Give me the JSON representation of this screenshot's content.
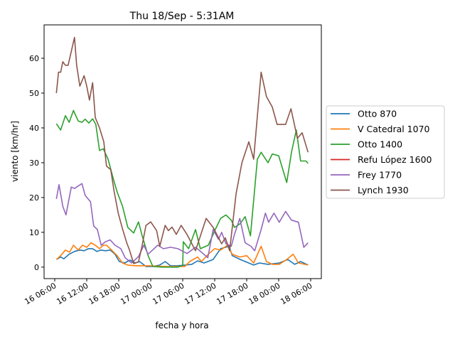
{
  "chart_data": {
    "type": "line",
    "title": "Thu 18/Sep - 5:31AM",
    "xlabel": "fecha y hora",
    "ylabel": "viento [km/hr]",
    "x_units": "hours since 16 06:00",
    "xlim": [
      -2,
      50
    ],
    "ylim": [
      -3.3,
      69.6
    ],
    "xticks": [
      {
        "value": 0,
        "label": "16 06:00"
      },
      {
        "value": 6,
        "label": "16 12:00"
      },
      {
        "value": 12,
        "label": "16 18:00"
      },
      {
        "value": 18,
        "label": "17 00:00"
      },
      {
        "value": 24,
        "label": "17 06:00"
      },
      {
        "value": 30,
        "label": "17 12:00"
      },
      {
        "value": 36,
        "label": "17 18:00"
      },
      {
        "value": 42,
        "label": "18 00:00"
      },
      {
        "value": 48,
        "label": "18 06:00"
      }
    ],
    "yticks": [
      {
        "value": 0,
        "label": "0"
      },
      {
        "value": 10,
        "label": "10"
      },
      {
        "value": 20,
        "label": "20"
      },
      {
        "value": 30,
        "label": "30"
      },
      {
        "value": 40,
        "label": "40"
      },
      {
        "value": 50,
        "label": "50"
      },
      {
        "value": 60,
        "label": "60"
      }
    ],
    "legend_position": "right-outside",
    "series": [
      {
        "name": "Otto 870",
        "color": "#1f77b4",
        "points": [
          [
            0.3,
            2.2
          ],
          [
            1.1,
            2.9
          ],
          [
            1.7,
            2.4
          ],
          [
            2.7,
            3.7
          ],
          [
            3.7,
            4.5
          ],
          [
            4.7,
            4.9
          ],
          [
            5.5,
            4.7
          ],
          [
            6.3,
            5.3
          ],
          [
            7.1,
            5.3
          ],
          [
            7.9,
            4.5
          ],
          [
            8.7,
            4.9
          ],
          [
            9.5,
            4.7
          ],
          [
            10.4,
            4.9
          ],
          [
            11.3,
            3.7
          ],
          [
            12.1,
            1.6
          ],
          [
            13.1,
            1.2
          ],
          [
            14.1,
            2
          ],
          [
            15.1,
            1.2
          ],
          [
            15.9,
            1.6
          ],
          [
            17.1,
            0.2
          ],
          [
            18.4,
            0.2
          ],
          [
            19.7,
            0.6
          ],
          [
            20.7,
            1.6
          ],
          [
            21.7,
            0.4
          ],
          [
            23.1,
            0.4
          ],
          [
            25.7,
            0.8
          ],
          [
            26.8,
            1.8
          ],
          [
            28,
            1.2
          ],
          [
            29.7,
            2.2
          ],
          [
            31.1,
            5.3
          ],
          [
            32.7,
            6
          ],
          [
            33.3,
            3.3
          ],
          [
            34.8,
            2.2
          ],
          [
            37.3,
            0.6
          ],
          [
            38.4,
            1.2
          ],
          [
            40,
            0.8
          ],
          [
            42.1,
            1.2
          ],
          [
            43.7,
            2.2
          ],
          [
            45,
            0.8
          ],
          [
            46.1,
            1.6
          ],
          [
            47.5,
            0.6
          ]
        ]
      },
      {
        "name": "V Catedral 1070",
        "color": "#ff7f0e",
        "points": [
          [
            0.3,
            2.2
          ],
          [
            1.1,
            3.3
          ],
          [
            2,
            4.9
          ],
          [
            2.8,
            4.3
          ],
          [
            3.5,
            6.3
          ],
          [
            4.4,
            4.9
          ],
          [
            5.2,
            6.3
          ],
          [
            6,
            5.7
          ],
          [
            6.8,
            7
          ],
          [
            7.6,
            6.3
          ],
          [
            8.4,
            5.3
          ],
          [
            9.1,
            6.3
          ],
          [
            9.7,
            6.3
          ],
          [
            10.8,
            4.7
          ],
          [
            11.7,
            3.3
          ],
          [
            12.7,
            1.2
          ],
          [
            13.7,
            0.6
          ],
          [
            15.1,
            0.4
          ],
          [
            17.7,
            0.4
          ],
          [
            20.4,
            0.2
          ],
          [
            24.4,
            0.2
          ],
          [
            25.3,
            1.6
          ],
          [
            26.8,
            2.9
          ],
          [
            27.5,
            1.6
          ],
          [
            28.8,
            3.7
          ],
          [
            30,
            5.3
          ],
          [
            31.1,
            4.9
          ],
          [
            32.4,
            6.3
          ],
          [
            33.3,
            3.7
          ],
          [
            34.7,
            2.9
          ],
          [
            36,
            3.3
          ],
          [
            37.3,
            1.2
          ],
          [
            38.7,
            6
          ],
          [
            39.7,
            1.6
          ],
          [
            40.8,
            0.8
          ],
          [
            42.1,
            0.8
          ],
          [
            43.5,
            2.2
          ],
          [
            44.7,
            3.7
          ],
          [
            45.7,
            1.2
          ],
          [
            47.5,
            0.6
          ]
        ]
      },
      {
        "name": "Otto 1400",
        "color": "#2ca02c",
        "points": [
          [
            0.3,
            41.2
          ],
          [
            1.1,
            39.4
          ],
          [
            2,
            43.5
          ],
          [
            2.7,
            41.6
          ],
          [
            3.5,
            45
          ],
          [
            4.4,
            42
          ],
          [
            5.1,
            41.6
          ],
          [
            5.7,
            42.5
          ],
          [
            6.4,
            41.4
          ],
          [
            7.1,
            42.6
          ],
          [
            7.7,
            41
          ],
          [
            8.4,
            33.5
          ],
          [
            9.1,
            34
          ],
          [
            10,
            31
          ],
          [
            11.1,
            24.7
          ],
          [
            11.7,
            21.6
          ],
          [
            12.7,
            17.5
          ],
          [
            13.7,
            11.4
          ],
          [
            14.8,
            9.8
          ],
          [
            15.7,
            13
          ],
          [
            16.4,
            9
          ],
          [
            17.5,
            3.3
          ],
          [
            18.4,
            0.2
          ],
          [
            20.1,
            0
          ],
          [
            23.1,
            0
          ],
          [
            24,
            0.5
          ],
          [
            24.1,
            7.3
          ],
          [
            25.1,
            5.3
          ],
          [
            26.4,
            10.8
          ],
          [
            27.3,
            5.3
          ],
          [
            28.8,
            6.3
          ],
          [
            30.1,
            10.8
          ],
          [
            31.1,
            14
          ],
          [
            32.1,
            15
          ],
          [
            33.1,
            13.5
          ],
          [
            33.7,
            11.4
          ],
          [
            34.8,
            12.5
          ],
          [
            35.7,
            14.5
          ],
          [
            36.7,
            9
          ],
          [
            38,
            31
          ],
          [
            38.7,
            33
          ],
          [
            40,
            30
          ],
          [
            40.8,
            32.5
          ],
          [
            42,
            32
          ],
          [
            43.5,
            24.3
          ],
          [
            44.4,
            33
          ],
          [
            45.3,
            39.4
          ],
          [
            46.1,
            30.5
          ],
          [
            47.1,
            30.5
          ],
          [
            47.5,
            29.8
          ]
        ]
      },
      {
        "name": "Refu López 1600",
        "color": "#d62728",
        "points": []
      },
      {
        "name": "Frey 1770",
        "color": "#9467bd",
        "points": [
          [
            0.3,
            19.6
          ],
          [
            0.8,
            23.7
          ],
          [
            1.5,
            17.5
          ],
          [
            2.1,
            15
          ],
          [
            3.1,
            23
          ],
          [
            3.7,
            22.6
          ],
          [
            4.4,
            23.3
          ],
          [
            5.1,
            24
          ],
          [
            5.7,
            20.6
          ],
          [
            6.7,
            18.8
          ],
          [
            7.3,
            11.8
          ],
          [
            8,
            10.8
          ],
          [
            8.7,
            6.3
          ],
          [
            9.5,
            7.3
          ],
          [
            10.4,
            7.8
          ],
          [
            11.3,
            6.3
          ],
          [
            12.4,
            5.3
          ],
          [
            13.2,
            2.7
          ],
          [
            14.4,
            1.2
          ],
          [
            15.7,
            3
          ],
          [
            16.7,
            6.3
          ],
          [
            17.5,
            3.7
          ],
          [
            18.4,
            5
          ],
          [
            19.3,
            6.3
          ],
          [
            20.4,
            5.3
          ],
          [
            21.7,
            5.7
          ],
          [
            23.1,
            5.3
          ],
          [
            24.8,
            3.9
          ],
          [
            26.4,
            5.7
          ],
          [
            27.5,
            4.3
          ],
          [
            28.7,
            2.7
          ],
          [
            29.7,
            10.8
          ],
          [
            30.7,
            8
          ],
          [
            31.3,
            10
          ],
          [
            32.1,
            6.7
          ],
          [
            33.1,
            6
          ],
          [
            33.7,
            9.4
          ],
          [
            34.7,
            14
          ],
          [
            35.7,
            7
          ],
          [
            36.8,
            6
          ],
          [
            37.5,
            4.7
          ],
          [
            38.7,
            10.8
          ],
          [
            39.5,
            15.5
          ],
          [
            40.1,
            12.9
          ],
          [
            41.1,
            15.5
          ],
          [
            42.1,
            12.9
          ],
          [
            43.3,
            16
          ],
          [
            44.4,
            13.5
          ],
          [
            45.7,
            12.9
          ],
          [
            46.7,
            5.7
          ],
          [
            47.5,
            7
          ]
        ]
      },
      {
        "name": "Lynch 1930",
        "color": "#8c564b",
        "points": [
          [
            0.3,
            50
          ],
          [
            0.7,
            56
          ],
          [
            1.1,
            56
          ],
          [
            1.5,
            59
          ],
          [
            2,
            58
          ],
          [
            2.5,
            58
          ],
          [
            3.1,
            62
          ],
          [
            3.7,
            66
          ],
          [
            4.1,
            58
          ],
          [
            4.7,
            52
          ],
          [
            5.5,
            55
          ],
          [
            6,
            52
          ],
          [
            6.5,
            48
          ],
          [
            7.1,
            53
          ],
          [
            7.6,
            43
          ],
          [
            8.4,
            40
          ],
          [
            9.2,
            36
          ],
          [
            9.7,
            29
          ],
          [
            10.5,
            28
          ],
          [
            11.1,
            22
          ],
          [
            11.9,
            15.5
          ],
          [
            12.7,
            11
          ],
          [
            13.5,
            7
          ],
          [
            14,
            5
          ],
          [
            14.8,
            1
          ],
          [
            15.7,
            1.5
          ],
          [
            16.4,
            6.3
          ],
          [
            17.1,
            12
          ],
          [
            18,
            13
          ],
          [
            19.1,
            10.5
          ],
          [
            19.7,
            6
          ],
          [
            20.7,
            12
          ],
          [
            21.3,
            10.5
          ],
          [
            22,
            11.5
          ],
          [
            22.8,
            9.4
          ],
          [
            23.7,
            12
          ],
          [
            24.8,
            9.4
          ],
          [
            26.4,
            4.7
          ],
          [
            28.4,
            14
          ],
          [
            29.7,
            11.4
          ],
          [
            31.3,
            6.7
          ],
          [
            32,
            8.4
          ],
          [
            32.8,
            4.7
          ],
          [
            34,
            21
          ],
          [
            35.1,
            30
          ],
          [
            36.4,
            36
          ],
          [
            37.3,
            31
          ],
          [
            38.7,
            56
          ],
          [
            39.7,
            49
          ],
          [
            40.8,
            46
          ],
          [
            41.7,
            41
          ],
          [
            43.3,
            41
          ],
          [
            44.3,
            45.5
          ],
          [
            45.5,
            37
          ],
          [
            46.4,
            38.6
          ],
          [
            47.5,
            33
          ]
        ]
      }
    ]
  }
}
